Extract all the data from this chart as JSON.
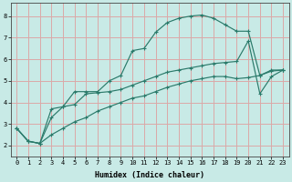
{
  "xlabel": "Humidex (Indice chaleur)",
  "bg_color": "#c8eae6",
  "line_color": "#2a7a6a",
  "grid_color": "#dba8a8",
  "xlim": [
    -0.5,
    23.5
  ],
  "ylim": [
    1.5,
    8.6
  ],
  "xticks": [
    0,
    1,
    2,
    3,
    4,
    5,
    6,
    7,
    8,
    9,
    10,
    11,
    12,
    13,
    14,
    15,
    16,
    17,
    18,
    19,
    20,
    21,
    22,
    23
  ],
  "yticks": [
    2,
    3,
    4,
    5,
    6,
    7,
    8
  ],
  "line1_x": [
    0,
    1,
    2,
    3,
    4,
    5,
    6,
    7,
    8,
    9,
    10,
    11,
    12,
    13,
    14,
    15,
    16,
    17,
    18,
    19,
    20,
    21,
    22,
    23
  ],
  "line1_y": [
    2.8,
    2.2,
    2.1,
    3.7,
    3.8,
    4.5,
    4.5,
    4.5,
    5.0,
    5.25,
    6.4,
    6.5,
    7.25,
    7.7,
    7.9,
    8.0,
    8.05,
    7.9,
    7.6,
    7.3,
    7.3,
    5.25,
    5.5,
    5.5
  ],
  "line2_x": [
    0,
    1,
    2,
    3,
    4,
    5,
    6,
    7,
    8,
    9,
    10,
    11,
    12,
    13,
    14,
    15,
    16,
    17,
    18,
    19,
    20,
    21,
    22,
    23
  ],
  "line2_y": [
    2.8,
    2.2,
    2.1,
    2.5,
    2.8,
    3.1,
    3.3,
    3.6,
    3.8,
    4.0,
    4.2,
    4.3,
    4.5,
    4.7,
    4.85,
    5.0,
    5.1,
    5.2,
    5.2,
    5.1,
    5.15,
    5.25,
    5.45,
    5.5
  ],
  "line3_x": [
    0,
    1,
    2,
    3,
    4,
    5,
    6,
    7,
    8,
    9,
    10,
    11,
    12,
    13,
    14,
    15,
    16,
    17,
    18,
    19,
    20,
    21,
    22,
    23
  ],
  "line3_y": [
    2.8,
    2.2,
    2.1,
    3.3,
    3.8,
    3.9,
    4.4,
    4.45,
    4.5,
    4.6,
    4.8,
    5.0,
    5.2,
    5.4,
    5.5,
    5.6,
    5.7,
    5.8,
    5.85,
    5.9,
    6.85,
    4.4,
    5.2,
    5.5
  ]
}
